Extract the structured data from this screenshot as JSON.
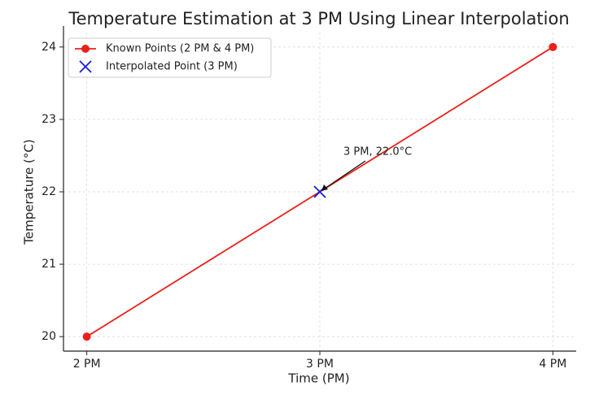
{
  "chart_data": {
    "type": "line",
    "title": "Temperature Estimation at 3 PM Using Linear Interpolation",
    "x_label": "Time (PM)",
    "y_label": "Temperature (°C)",
    "xlim": [
      1.9,
      4.1
    ],
    "ylim": [
      19.8,
      24.2
    ],
    "xticks": [
      {
        "value": 2,
        "label": "2 PM"
      },
      {
        "value": 3,
        "label": "3 PM"
      },
      {
        "value": 4,
        "label": "4 PM"
      }
    ],
    "yticks": [
      20,
      21,
      22,
      23,
      24
    ],
    "grid": true,
    "legend": "upper left",
    "series": [
      {
        "name": "Known Points (2 PM & 4 PM)",
        "color": "#e8211c",
        "marker": "o",
        "linestyle": "-",
        "x": [
          2,
          4
        ],
        "values": [
          20,
          24
        ]
      },
      {
        "name": "Interpolated Point (3 PM)",
        "color": "#1a1adb",
        "marker": "x",
        "linestyle": "none",
        "x": [
          3
        ],
        "values": [
          22
        ]
      }
    ],
    "annotation": {
      "text": "3 PM, 22.0°C"
    }
  }
}
